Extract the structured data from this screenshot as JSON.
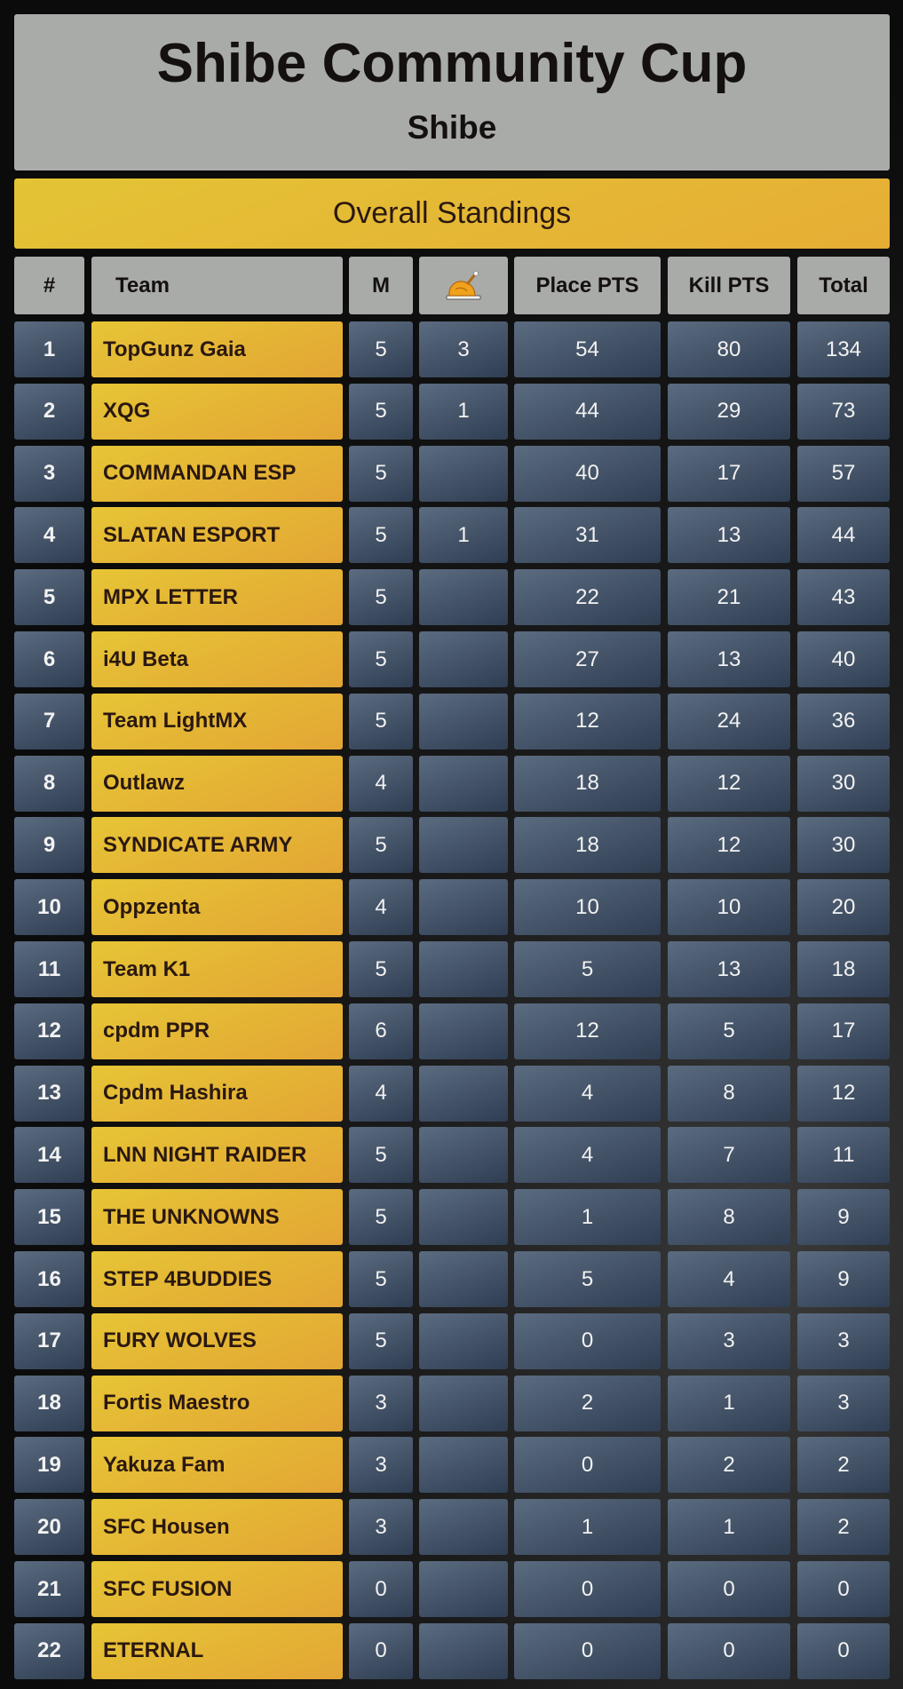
{
  "header": {
    "title": "Shibe Community Cup",
    "subtitle": "Shibe"
  },
  "banner": {
    "label": "Overall Standings"
  },
  "columns": {
    "rank": "#",
    "team": "Team",
    "matches": "M",
    "wwcd_icon": "chicken-dinner-icon",
    "place": "Place PTS",
    "kill": "Kill PTS",
    "total": "Total"
  },
  "colors": {
    "gold": "#e3b535",
    "slate": "#44546a",
    "header_grey": "#a9aba8"
  },
  "standings": [
    {
      "rank": "1",
      "team": "TopGunz Gaia",
      "m": "5",
      "wwcd": "3",
      "place": "54",
      "kill": "80",
      "total": "134"
    },
    {
      "rank": "2",
      "team": "XQG",
      "m": "5",
      "wwcd": "1",
      "place": "44",
      "kill": "29",
      "total": "73"
    },
    {
      "rank": "3",
      "team": "COMMANDAN ESP",
      "m": "5",
      "wwcd": "",
      "place": "40",
      "kill": "17",
      "total": "57"
    },
    {
      "rank": "4",
      "team": "SLATAN ESPORT",
      "m": "5",
      "wwcd": "1",
      "place": "31",
      "kill": "13",
      "total": "44"
    },
    {
      "rank": "5",
      "team": "MPX LETTER",
      "m": "5",
      "wwcd": "",
      "place": "22",
      "kill": "21",
      "total": "43"
    },
    {
      "rank": "6",
      "team": "i4U Beta",
      "m": "5",
      "wwcd": "",
      "place": "27",
      "kill": "13",
      "total": "40"
    },
    {
      "rank": "7",
      "team": "Team LightMX",
      "m": "5",
      "wwcd": "",
      "place": "12",
      "kill": "24",
      "total": "36"
    },
    {
      "rank": "8",
      "team": "Outlawz",
      "m": "4",
      "wwcd": "",
      "place": "18",
      "kill": "12",
      "total": "30"
    },
    {
      "rank": "9",
      "team": "SYNDICATE ARMY",
      "m": "5",
      "wwcd": "",
      "place": "18",
      "kill": "12",
      "total": "30"
    },
    {
      "rank": "10",
      "team": "Oppzenta",
      "m": "4",
      "wwcd": "",
      "place": "10",
      "kill": "10",
      "total": "20"
    },
    {
      "rank": "11",
      "team": "Team K1",
      "m": "5",
      "wwcd": "",
      "place": "5",
      "kill": "13",
      "total": "18"
    },
    {
      "rank": "12",
      "team": "cpdm PPR",
      "m": "6",
      "wwcd": "",
      "place": "12",
      "kill": "5",
      "total": "17"
    },
    {
      "rank": "13",
      "team": "Cpdm Hashira",
      "m": "4",
      "wwcd": "",
      "place": "4",
      "kill": "8",
      "total": "12"
    },
    {
      "rank": "14",
      "team": "LNN NIGHT RAIDER",
      "m": "5",
      "wwcd": "",
      "place": "4",
      "kill": "7",
      "total": "11"
    },
    {
      "rank": "15",
      "team": "THE UNKNOWNS",
      "m": "5",
      "wwcd": "",
      "place": "1",
      "kill": "8",
      "total": "9"
    },
    {
      "rank": "16",
      "team": "STEP 4BUDDIES",
      "m": "5",
      "wwcd": "",
      "place": "5",
      "kill": "4",
      "total": "9"
    },
    {
      "rank": "17",
      "team": "FURY WOLVES",
      "m": "5",
      "wwcd": "",
      "place": "0",
      "kill": "3",
      "total": "3"
    },
    {
      "rank": "18",
      "team": "Fortis Maestro",
      "m": "3",
      "wwcd": "",
      "place": "2",
      "kill": "1",
      "total": "3"
    },
    {
      "rank": "19",
      "team": "Yakuza Fam",
      "m": "3",
      "wwcd": "",
      "place": "0",
      "kill": "2",
      "total": "2"
    },
    {
      "rank": "20",
      "team": "SFC Housen",
      "m": "3",
      "wwcd": "",
      "place": "1",
      "kill": "1",
      "total": "2"
    },
    {
      "rank": "21",
      "team": "SFC FUSION",
      "m": "0",
      "wwcd": "",
      "place": "0",
      "kill": "0",
      "total": "0"
    },
    {
      "rank": "22",
      "team": "ETERNAL",
      "m": "0",
      "wwcd": "",
      "place": "0",
      "kill": "0",
      "total": "0"
    }
  ]
}
